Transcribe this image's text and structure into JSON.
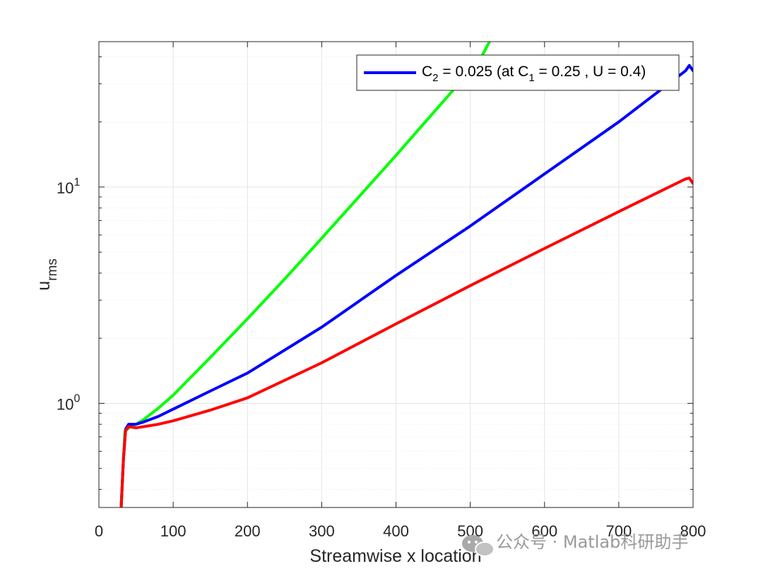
{
  "chart_data": {
    "type": "line",
    "xlabel": "Streamwise x location",
    "ylabel": "u",
    "ylabel_sub": "rms",
    "xlim": [
      0,
      800
    ],
    "ylim": [
      0.33,
      47
    ],
    "yscale": "log",
    "grid": true,
    "x_ticks": [
      0,
      100,
      200,
      300,
      400,
      500,
      600,
      700,
      800
    ],
    "y_ticks": [
      {
        "value": 1,
        "base": "10",
        "exp": "0"
      },
      {
        "value": 10,
        "base": "10",
        "exp": "1"
      }
    ],
    "legend": {
      "placement": "top-right",
      "label": {
        "p1": "C",
        "p1sub": "2",
        "p2": " = 0.025 (at C",
        "p2sub": "1",
        "p3": " = 0.25 , U = 0.4)"
      }
    },
    "series": [
      {
        "color": "#00ff00",
        "points": [
          [
            30,
            0.33
          ],
          [
            33,
            0.55
          ],
          [
            35,
            0.74
          ],
          [
            40,
            0.77
          ],
          [
            50,
            0.8
          ],
          [
            60,
            0.84
          ],
          [
            80,
            0.95
          ],
          [
            100,
            1.09
          ],
          [
            150,
            1.63
          ],
          [
            200,
            2.46
          ],
          [
            250,
            3.75
          ],
          [
            300,
            5.8
          ],
          [
            350,
            9.0
          ],
          [
            400,
            14.0
          ],
          [
            450,
            22.0
          ],
          [
            500,
            34.5
          ],
          [
            511,
            37.5
          ],
          [
            520,
            43
          ],
          [
            530,
            50
          ]
        ]
      },
      {
        "name": "C2 = 0.025 (at C1 = 0.25 , U = 0.4)",
        "color": "#0000ff",
        "points": [
          [
            30,
            0.33
          ],
          [
            33,
            0.55
          ],
          [
            36,
            0.76
          ],
          [
            40,
            0.8
          ],
          [
            50,
            0.8
          ],
          [
            60,
            0.82
          ],
          [
            80,
            0.87
          ],
          [
            100,
            0.94
          ],
          [
            150,
            1.14
          ],
          [
            200,
            1.38
          ],
          [
            300,
            2.25
          ],
          [
            400,
            3.9
          ],
          [
            500,
            6.6
          ],
          [
            600,
            11.5
          ],
          [
            700,
            20.0
          ],
          [
            790,
            34.5
          ],
          [
            795,
            36.5
          ],
          [
            800,
            34.5
          ]
        ]
      },
      {
        "color": "#ff0000",
        "points": [
          [
            30,
            0.33
          ],
          [
            33,
            0.55
          ],
          [
            36,
            0.75
          ],
          [
            40,
            0.78
          ],
          [
            50,
            0.77
          ],
          [
            60,
            0.78
          ],
          [
            80,
            0.8
          ],
          [
            100,
            0.83
          ],
          [
            150,
            0.93
          ],
          [
            200,
            1.06
          ],
          [
            300,
            1.54
          ],
          [
            400,
            2.33
          ],
          [
            500,
            3.5
          ],
          [
            600,
            5.2
          ],
          [
            700,
            7.7
          ],
          [
            790,
            10.9
          ],
          [
            795,
            11.0
          ],
          [
            800,
            10.4
          ]
        ]
      }
    ]
  },
  "watermark": {
    "icon": "wechat-icon",
    "text": "公众号 · Matlab科研助手"
  }
}
